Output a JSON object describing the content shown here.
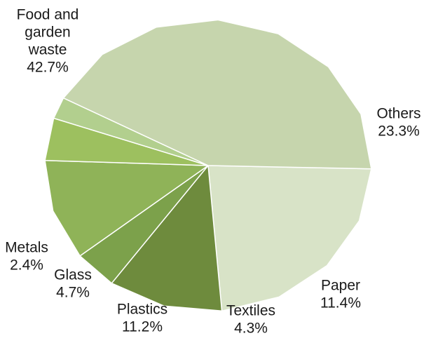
{
  "chart_data": {
    "type": "pie",
    "title": "",
    "legend": "none",
    "slices": [
      {
        "label": [
          "Others"
        ],
        "value_label": "23.3%",
        "value": 23.3,
        "color": "#d8e3c7"
      },
      {
        "label": [
          "Paper"
        ],
        "value_label": "11.4%",
        "value": 11.4,
        "color": "#6e8b3d"
      },
      {
        "label": [
          "Textiles"
        ],
        "value_label": "4.3%",
        "value": 4.3,
        "color": "#7ca14b"
      },
      {
        "label": [
          "Plastics"
        ],
        "value_label": "11.2%",
        "value": 11.2,
        "color": "#8fb358"
      },
      {
        "label": [
          "Glass"
        ],
        "value_label": "4.7%",
        "value": 4.7,
        "color": "#9dc05f"
      },
      {
        "label": [
          "Metals"
        ],
        "value_label": "2.4%",
        "value": 2.4,
        "color": "#b2cf8e"
      },
      {
        "label": [
          "Food and",
          "garden",
          "waste"
        ],
        "value_label": "42.7%",
        "value": 42.7,
        "color": "#c6d5ad"
      }
    ]
  }
}
